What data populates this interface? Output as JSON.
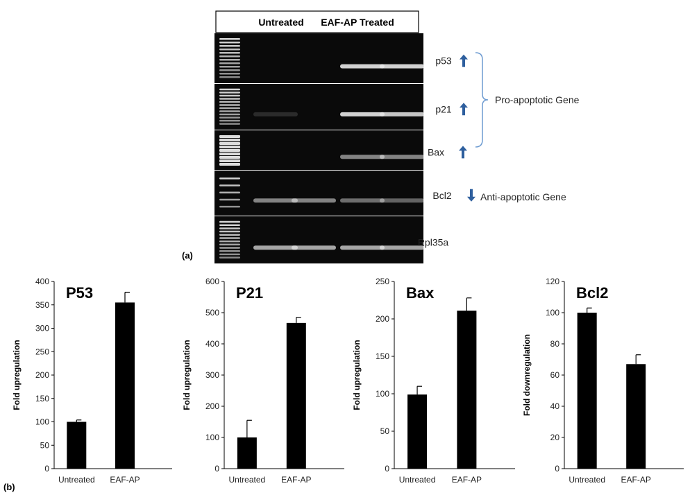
{
  "panel_a": {
    "panel_label": "(a)",
    "header": [
      "Untreated",
      "EAF-AP Treated"
    ],
    "gel_rows": [
      {
        "gene": "p53",
        "direction": "up",
        "bands": [
          0,
          0,
          0.9,
          0.9
        ],
        "ladder": "full"
      },
      {
        "gene": "p21",
        "direction": "up",
        "bands": [
          0.15,
          0,
          0.9,
          0.85
        ],
        "ladder": "full"
      },
      {
        "gene": "Bax",
        "direction": "up",
        "bands": [
          0,
          0,
          0.55,
          0.55
        ],
        "ladder": "bright"
      },
      {
        "gene": "Bcl2",
        "direction": "down",
        "bands": [
          0.55,
          0.55,
          0.45,
          0.4
        ],
        "ladder": "sparse"
      },
      {
        "gene": "Rpl35a",
        "direction": "",
        "bands": [
          0.7,
          0.7,
          0.7,
          0.7
        ],
        "ladder": "full"
      }
    ],
    "groups": [
      {
        "label": "Pro-apoptotic Gene"
      },
      {
        "label": "Anti-apoptotic Gene"
      }
    ],
    "colors": {
      "gel_bg": "#0a0a0a",
      "band": "#e8e8e8",
      "arrow": "#2e5f9e",
      "bracket": "#6d9bd1"
    }
  },
  "panel_b": {
    "panel_label": "(b)"
  },
  "chart_data": [
    {
      "type": "bar",
      "title": "P53",
      "categories": [
        "Untreated",
        "EAF-AP"
      ],
      "values": [
        100,
        355
      ],
      "errors": [
        4,
        22
      ],
      "ylabel": "Fold upregulation",
      "ylim": [
        0,
        400
      ],
      "yticks": [
        0,
        50,
        100,
        150,
        200,
        250,
        300,
        350,
        400
      ],
      "bar_color": "#000000"
    },
    {
      "type": "bar",
      "title": "P21",
      "categories": [
        "Untreated",
        "EAF-AP"
      ],
      "values": [
        100,
        467
      ],
      "errors": [
        55,
        18
      ],
      "ylabel": "Fold upregulation",
      "ylim": [
        0,
        600
      ],
      "yticks": [
        0,
        100,
        200,
        300,
        400,
        500,
        600
      ],
      "bar_color": "#000000"
    },
    {
      "type": "bar",
      "title": "Bax",
      "categories": [
        "Untreated",
        "EAF-AP"
      ],
      "values": [
        99,
        211
      ],
      "errors": [
        11,
        17
      ],
      "ylabel": "Fold upregulation",
      "ylim": [
        0,
        250
      ],
      "yticks": [
        0,
        50,
        100,
        150,
        200,
        250
      ],
      "bar_color": "#000000"
    },
    {
      "type": "bar",
      "title": "Bcl2",
      "categories": [
        "Untreated",
        "EAF-AP"
      ],
      "values": [
        100,
        67
      ],
      "errors": [
        3,
        6
      ],
      "ylabel": "Fold downregulation",
      "ylim": [
        0,
        120
      ],
      "yticks": [
        0,
        20,
        40,
        60,
        80,
        100,
        120
      ],
      "bar_color": "#000000"
    }
  ]
}
